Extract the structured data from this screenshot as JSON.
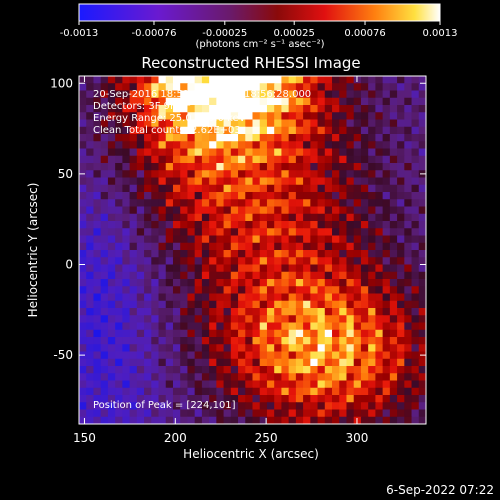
{
  "colorbar": {
    "tick_values": [
      -0.0013,
      -0.00076,
      -0.00025,
      0.00025,
      0.00076,
      0.0013
    ],
    "tick_labels": [
      "-0.0013",
      "-0.00076",
      "-0.00025",
      "0.00025",
      "0.00076",
      "0.0013"
    ],
    "units_label": "(photons cm⁻² s⁻¹ asec⁻²)",
    "range": [
      -0.0013,
      0.0013
    ]
  },
  "chart_data": {
    "type": "heatmap",
    "title": "Reconstructed RHESSI Image",
    "xlabel": "Heliocentric X (arcsec)",
    "ylabel": "Heliocentric Y (arcsec)",
    "xlim": [
      147,
      338
    ],
    "ylim": [
      -88,
      104
    ],
    "x_ticks": [
      150,
      200,
      250,
      300
    ],
    "y_ticks": [
      -50,
      0,
      50,
      100
    ],
    "grid": false,
    "colormap": "blue-purple-red-yellow-white (RHESSI std gamma)",
    "annotations": {
      "header_lines": [
        "20-Sep-2016 18:51:12.000 to 18:56:28.000",
        "Detectors: 3F 9F 8F",
        "Energy Range: 25.0 - 50.0 keV",
        "Clean    Total counts: 2.62E+03"
      ],
      "peak_label": "Position of Peak = [224,101]",
      "peak_position": [
        224,
        101
      ]
    }
  },
  "timestamp": "6-Sep-2022 07:22",
  "colors": {
    "background": "#000000",
    "foreground": "#ffffff"
  }
}
